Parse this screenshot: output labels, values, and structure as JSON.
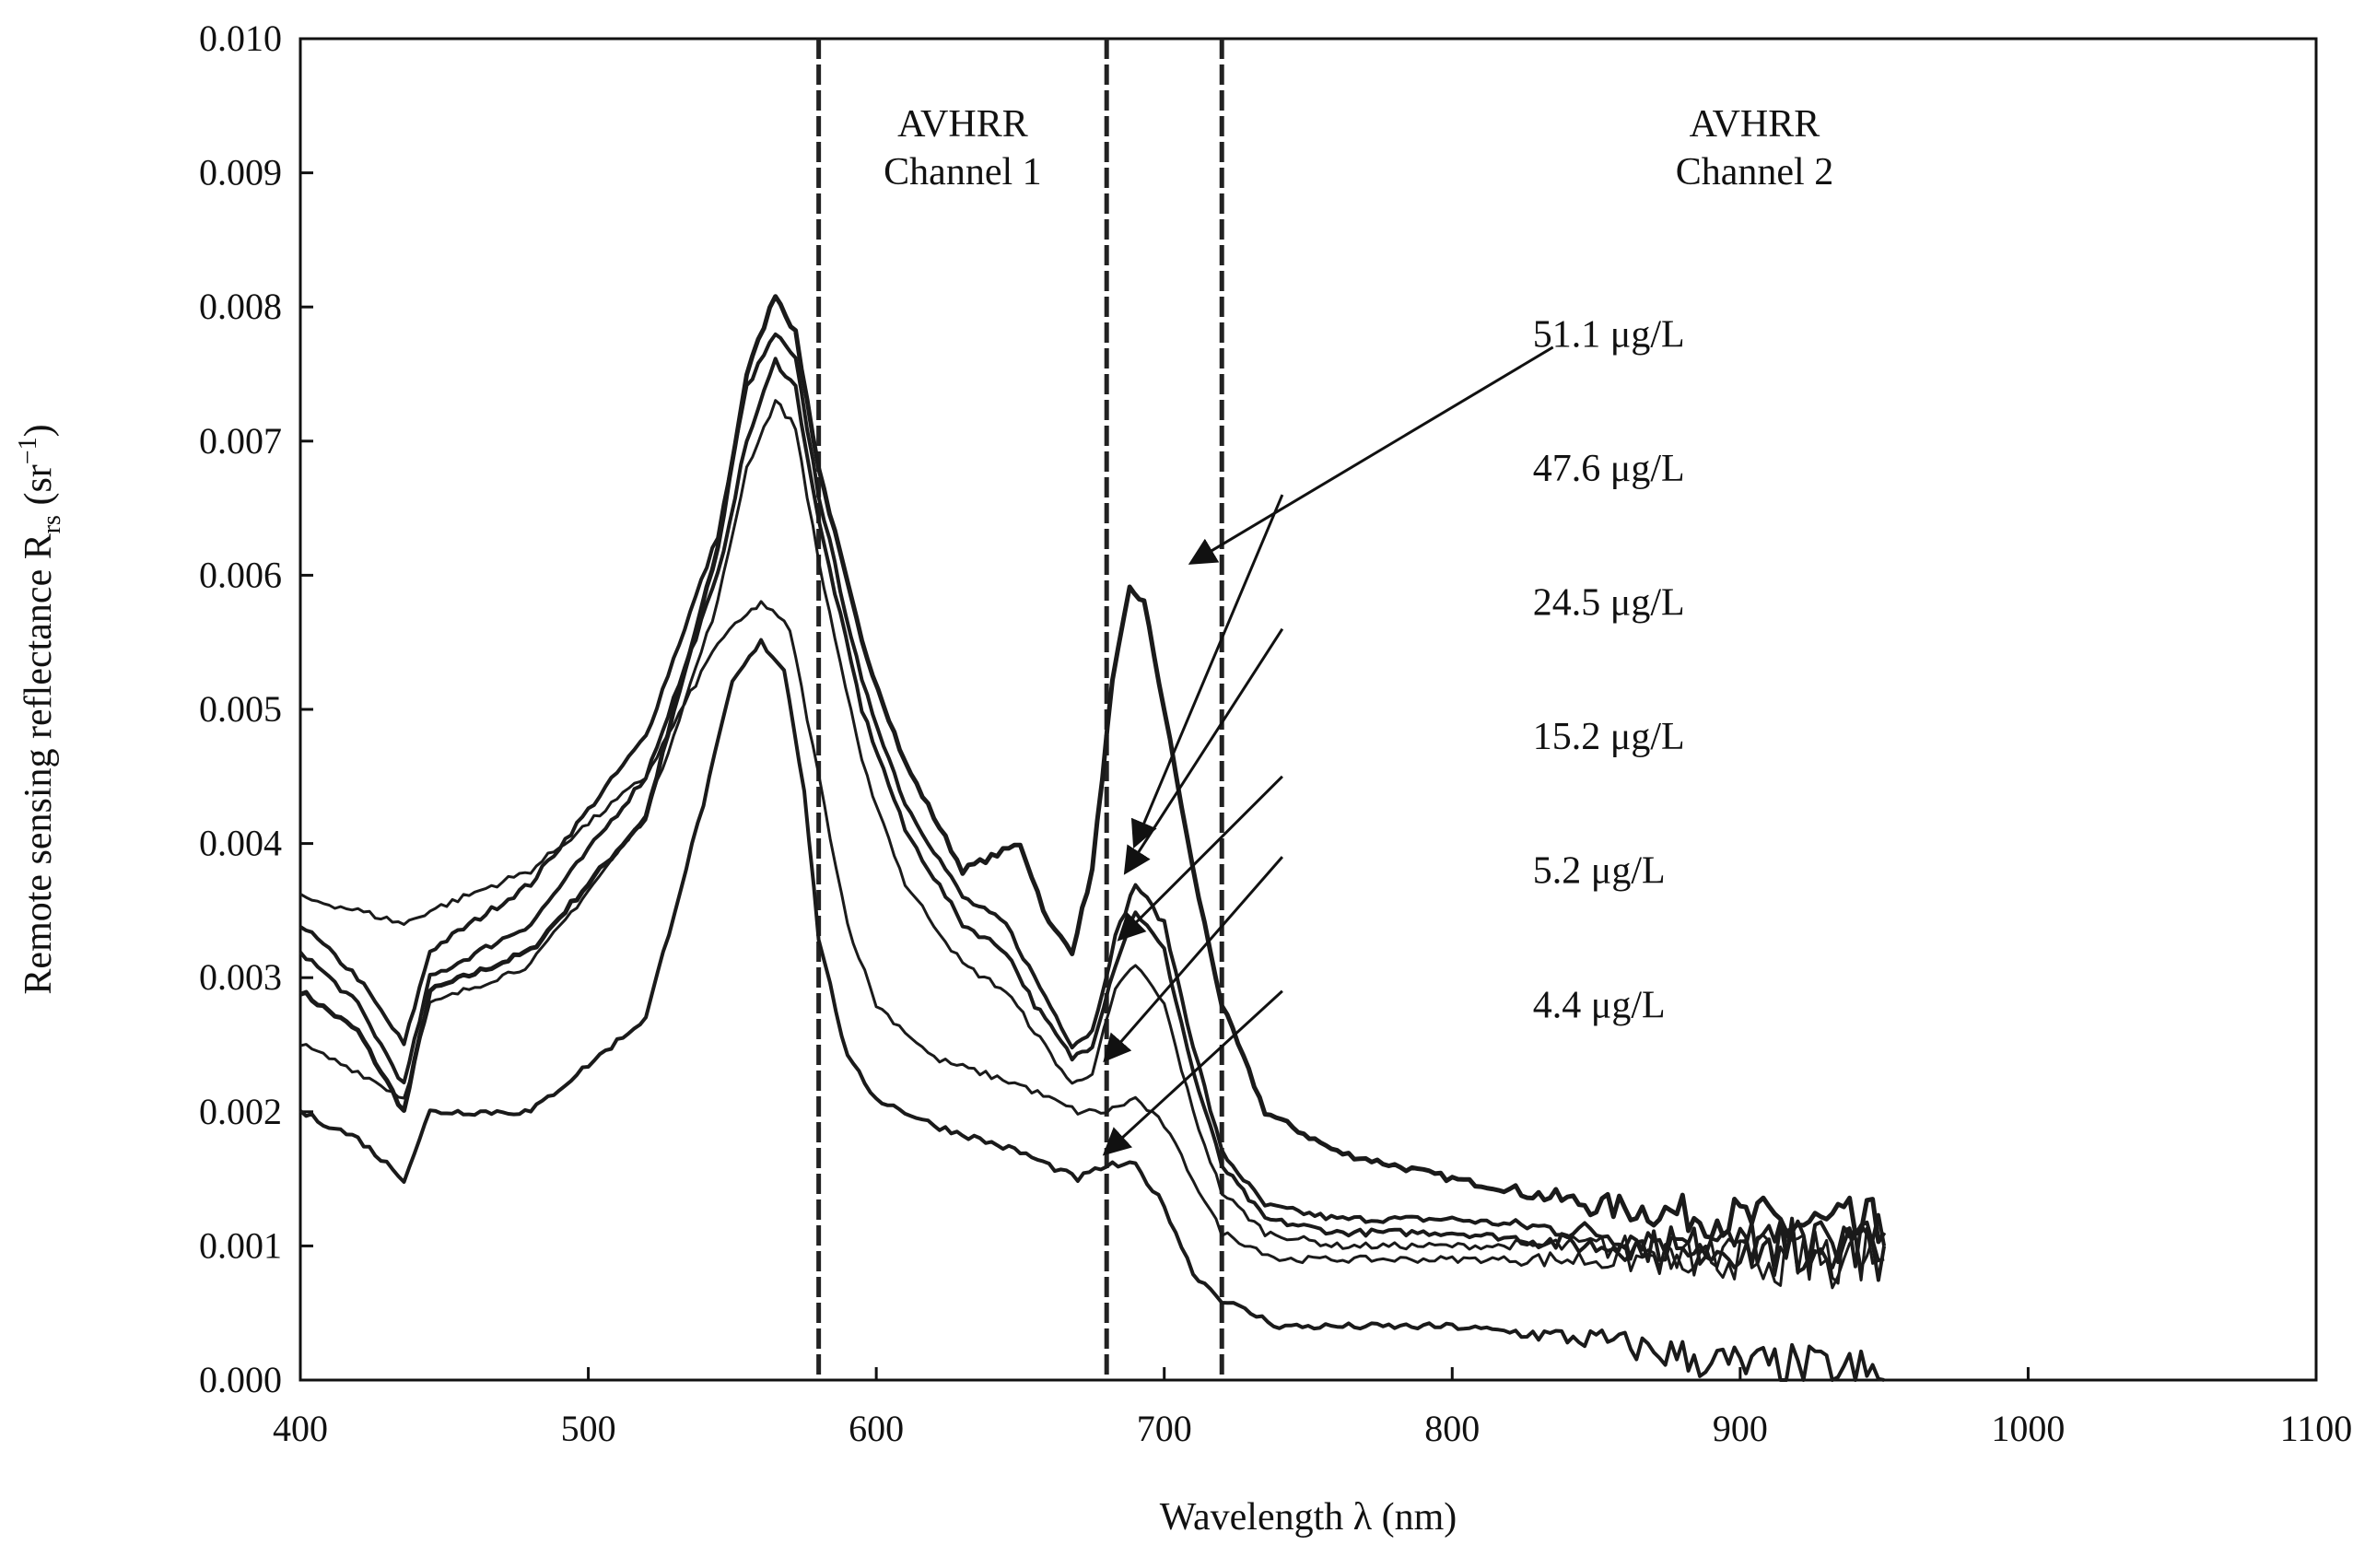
{
  "chart_data": {
    "type": "line",
    "title": "",
    "xlabel": "Wavelength λ (nm)",
    "ylabel_text": "Remote sensing reflectance R",
    "ylabel_sub": "rs",
    "ylabel_unit_pre": " (sr",
    "ylabel_unit_sup": "−1",
    "ylabel_unit_post": ")",
    "xlim": [
      400,
      1100
    ],
    "ylim": [
      0.0,
      0.01
    ],
    "x_ticks": [
      400,
      500,
      600,
      700,
      800,
      900,
      1000,
      1100
    ],
    "y_ticks": [
      "0.000",
      "0.001",
      "0.002",
      "0.003",
      "0.004",
      "0.005",
      "0.006",
      "0.007",
      "0.008",
      "0.009",
      "0.010"
    ],
    "grid": false,
    "vertical_lines": [
      {
        "name": "ch1-start",
        "x": 580
      },
      {
        "name": "ch1-end",
        "x": 680
      },
      {
        "name": "ch2-start",
        "x": 720
      }
    ],
    "region_labels": [
      {
        "name": "avhrr-channel-1",
        "line1": "AVHRR",
        "line2": "Channel 1",
        "x": 630
      },
      {
        "name": "avhrr-channel-2",
        "line1": "AVHRR",
        "line2": "Channel 2",
        "x": 905
      }
    ],
    "series": [
      {
        "name": "51.1 μg/L",
        "width": 5,
        "x": [
          400,
          420,
          436,
          445,
          480,
          520,
          545,
          555,
          565,
          572,
          580,
          595,
          610,
          630,
          640,
          650,
          660,
          668,
          675,
          682,
          688,
          693,
          700,
          710,
          720,
          735,
          760,
          800,
          850,
          900,
          950
        ],
        "y": [
          0.0029,
          0.0026,
          0.002,
          0.0029,
          0.0032,
          0.0042,
          0.0062,
          0.0075,
          0.0081,
          0.0078,
          0.0068,
          0.0055,
          0.0046,
          0.0038,
          0.0039,
          0.004,
          0.0034,
          0.0032,
          0.0038,
          0.0052,
          0.0059,
          0.0058,
          0.005,
          0.0038,
          0.0028,
          0.002,
          0.0017,
          0.0015,
          0.0013,
          0.0012,
          0.0011
        ]
      },
      {
        "name": "47.6 μg/L",
        "width": 4,
        "x": [
          400,
          420,
          436,
          445,
          480,
          520,
          545,
          555,
          565,
          572,
          580,
          595,
          610,
          630,
          645,
          655,
          668,
          675,
          683,
          690,
          700,
          710,
          720,
          735,
          760,
          800,
          850,
          900,
          950
        ],
        "y": [
          0.0034,
          0.003,
          0.0025,
          0.0032,
          0.0037,
          0.0048,
          0.0063,
          0.0074,
          0.0078,
          0.0076,
          0.0066,
          0.0052,
          0.0043,
          0.0036,
          0.0034,
          0.003,
          0.0025,
          0.0026,
          0.0033,
          0.0037,
          0.0034,
          0.0025,
          0.0017,
          0.0013,
          0.0012,
          0.0012,
          0.0011,
          0.001,
          0.001
        ]
      },
      {
        "name": "24.5 μg/L",
        "width": 4,
        "x": [
          400,
          420,
          436,
          445,
          480,
          520,
          545,
          555,
          565,
          572,
          580,
          595,
          610,
          630,
          645,
          655,
          668,
          675,
          683,
          690,
          700,
          710,
          720,
          735,
          760,
          800,
          850,
          900,
          950
        ],
        "y": [
          0.0032,
          0.0028,
          0.0022,
          0.003,
          0.0034,
          0.0045,
          0.006,
          0.007,
          0.0076,
          0.0074,
          0.0064,
          0.005,
          0.0041,
          0.0034,
          0.0032,
          0.0028,
          0.0024,
          0.0025,
          0.0031,
          0.0035,
          0.0032,
          0.0023,
          0.0016,
          0.0012,
          0.0011,
          0.0011,
          0.001,
          0.001,
          0.001
        ]
      },
      {
        "name": "15.2 μg/L",
        "width": 3,
        "x": [
          400,
          420,
          436,
          445,
          480,
          520,
          545,
          555,
          565,
          572,
          580,
          595,
          610,
          630,
          645,
          655,
          668,
          675,
          683,
          690,
          700,
          710,
          720,
          735,
          760,
          800,
          850,
          900,
          950
        ],
        "y": [
          0.0025,
          0.0023,
          0.0021,
          0.0028,
          0.0031,
          0.0042,
          0.0058,
          0.0068,
          0.0073,
          0.0071,
          0.0061,
          0.0046,
          0.0037,
          0.0031,
          0.0029,
          0.0026,
          0.0022,
          0.0023,
          0.0029,
          0.0031,
          0.0028,
          0.002,
          0.0014,
          0.0011,
          0.001,
          0.001,
          0.001,
          0.0009,
          0.0009
        ]
      },
      {
        "name": "5.2 μg/L",
        "width": 3,
        "x": [
          400,
          420,
          436,
          445,
          480,
          520,
          545,
          555,
          560,
          570,
          580,
          590,
          600,
          620,
          650,
          670,
          680,
          690,
          700,
          710,
          720,
          740,
          760,
          800,
          850,
          900,
          950
        ],
        "y": [
          0.0036,
          0.0035,
          0.0034,
          0.0035,
          0.0038,
          0.0045,
          0.0055,
          0.0057,
          0.0058,
          0.0056,
          0.0045,
          0.0034,
          0.0028,
          0.0024,
          0.0022,
          0.002,
          0.002,
          0.0021,
          0.0019,
          0.0015,
          0.0011,
          0.0009,
          0.0009,
          0.0009,
          0.0009,
          0.0009,
          0.0009
        ]
      },
      {
        "name": "4.4 μg/L",
        "width": 4,
        "x": [
          400,
          420,
          436,
          445,
          480,
          520,
          540,
          550,
          560,
          568,
          575,
          580,
          590,
          600,
          620,
          650,
          670,
          680,
          690,
          700,
          710,
          720,
          740,
          760,
          800,
          850,
          900,
          950
        ],
        "y": [
          0.002,
          0.0018,
          0.0015,
          0.002,
          0.002,
          0.0027,
          0.0043,
          0.0052,
          0.0055,
          0.0053,
          0.0044,
          0.0033,
          0.0024,
          0.0021,
          0.0019,
          0.0017,
          0.0015,
          0.0016,
          0.0016,
          0.0013,
          0.0008,
          0.0006,
          0.0004,
          0.0004,
          0.0004,
          0.0003,
          0.0001,
          0.0
        ]
      }
    ],
    "annotations": [
      {
        "name": "label-51-1",
        "text": "51.1 μg/L",
        "label_x": 828,
        "label_y": 0.0078,
        "arrow_from": [
          835,
          0.0077
        ],
        "arrow_to": [
          710,
          0.0061
        ]
      },
      {
        "name": "label-47-6",
        "text": "47.6 μg/L",
        "label_x": 828,
        "label_y": 0.0068,
        "arrow_from": [
          741,
          0.0066
        ],
        "arrow_to": [
          690,
          0.004
        ]
      },
      {
        "name": "label-24-5",
        "text": "24.5 μg/L",
        "label_x": 828,
        "label_y": 0.0058,
        "arrow_from": [
          741,
          0.0056
        ],
        "arrow_to": [
          687,
          0.0038
        ]
      },
      {
        "name": "label-15-2",
        "text": "15.2 μg/L",
        "label_x": 828,
        "label_y": 0.0048,
        "arrow_from": [
          741,
          0.0045
        ],
        "arrow_to": [
          685,
          0.0033
        ]
      },
      {
        "name": "label-5-2",
        "text": "5.2 μg/L",
        "label_x": 828,
        "label_y": 0.0038,
        "arrow_from": [
          741,
          0.0039
        ],
        "arrow_to": [
          680,
          0.0024
        ]
      },
      {
        "name": "label-4-4",
        "text": "4.4 μg/L",
        "label_x": 828,
        "label_y": 0.0028,
        "arrow_from": [
          741,
          0.0029
        ],
        "arrow_to": [
          680,
          0.0017
        ]
      }
    ]
  }
}
